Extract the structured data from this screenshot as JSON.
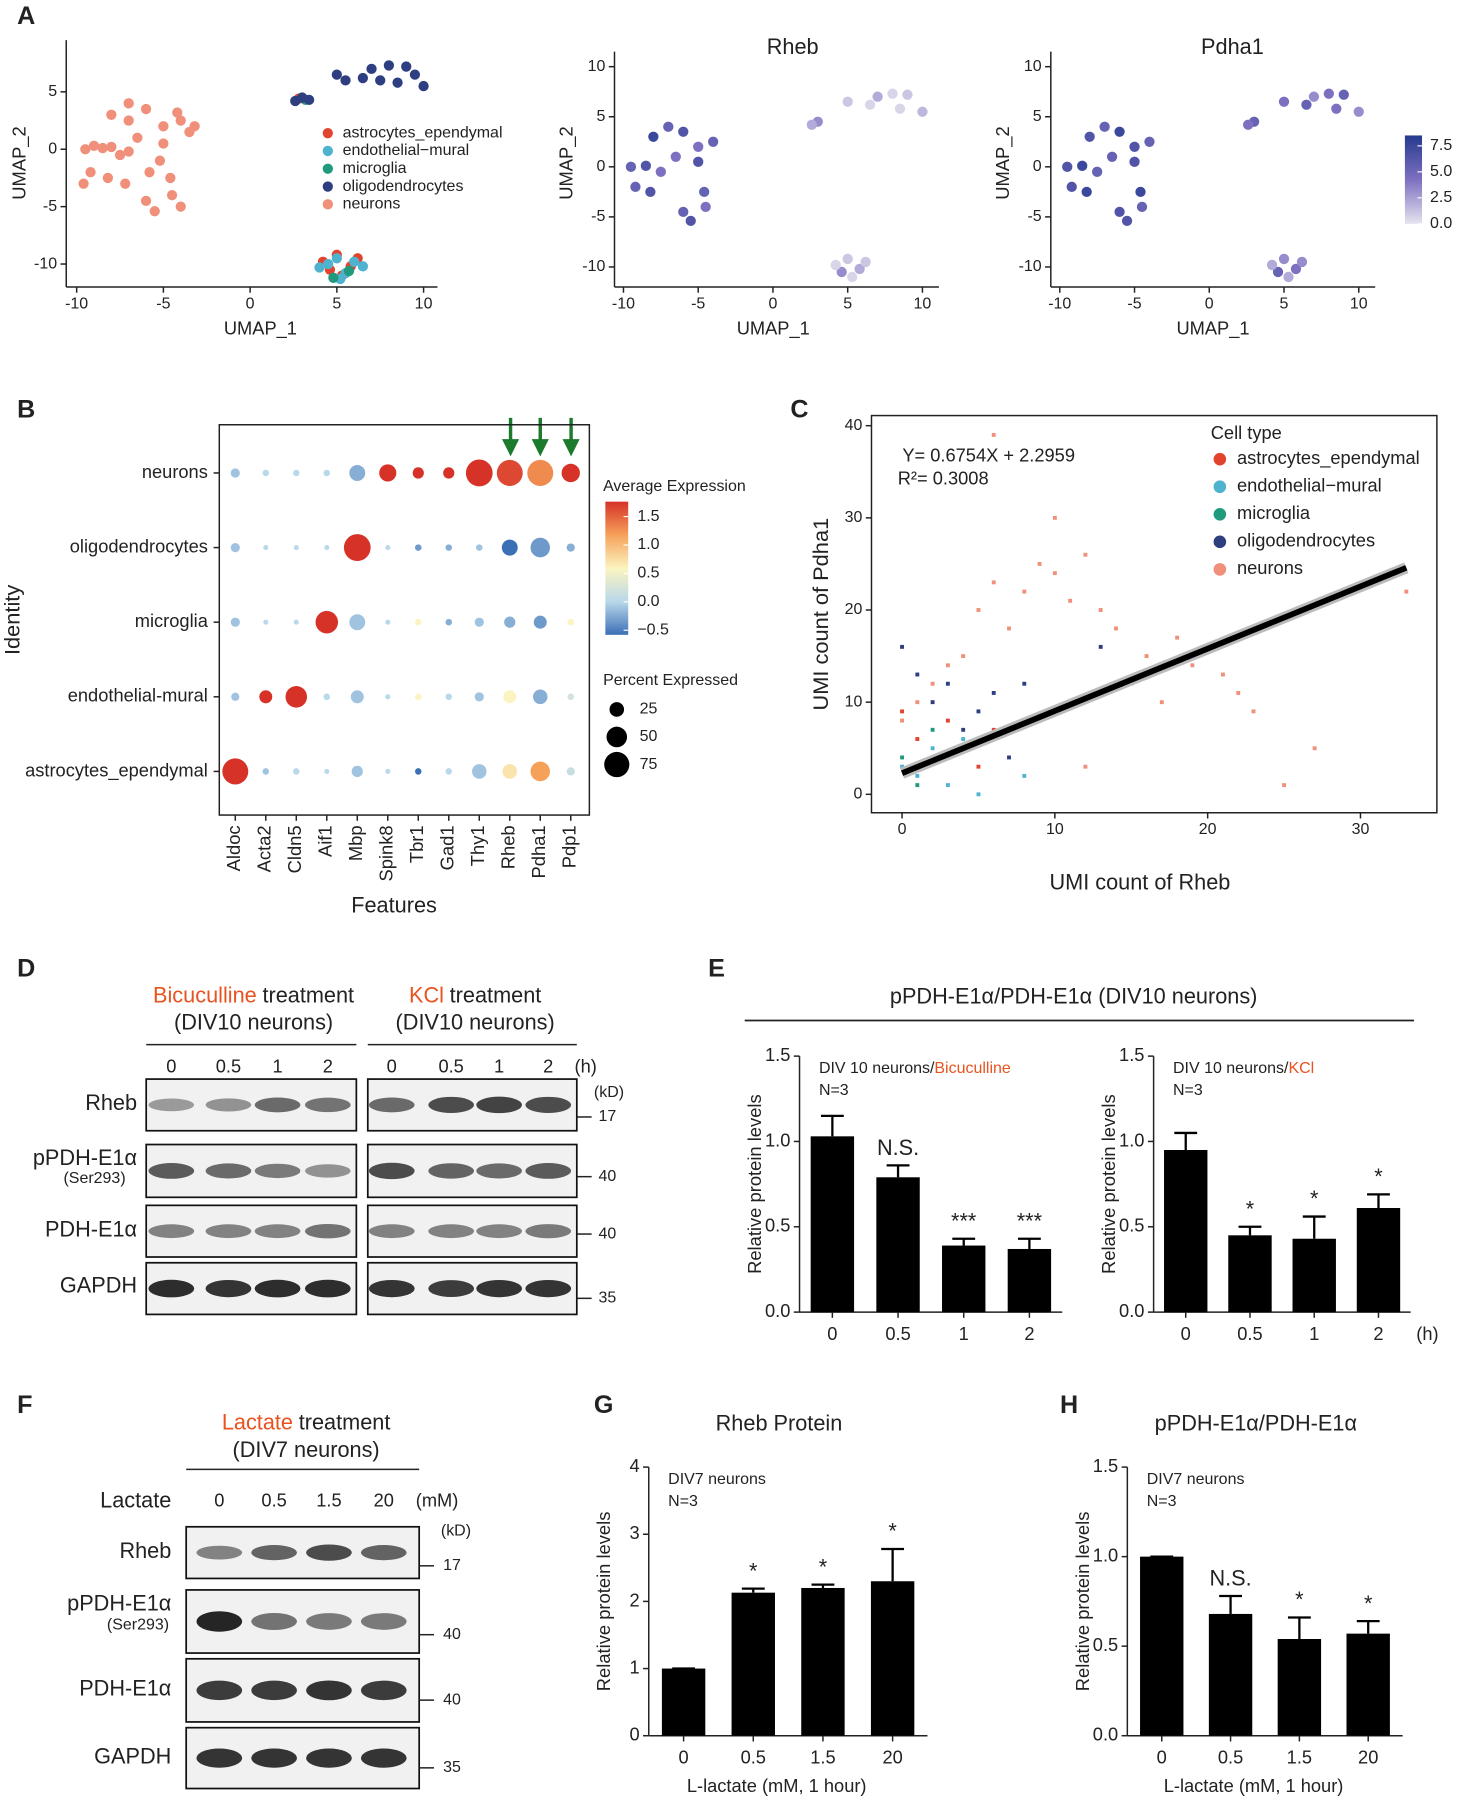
{
  "panel_labels": [
    "A",
    "B",
    "C",
    "D",
    "E",
    "F",
    "G",
    "H"
  ],
  "panel_e": {
    "title": "pPDH-E1α/PDH-E1α (DIV10 neurons)"
  },
  "chart_data": [
    {
      "type": "umap",
      "xlabel": "UMAP_1",
      "ylabel": "UMAP_2",
      "xlim": [
        -10.6,
        10.8
      ],
      "ylim": [
        -12,
        9.5
      ],
      "xticks": [
        -10,
        -5,
        0,
        5,
        10
      ],
      "yticks": [
        -10,
        -5,
        0,
        5
      ],
      "series": [
        {
          "name": "astrocytes_ependymal",
          "color": "#e2432f",
          "x": [
            5,
            5.8,
            5.3,
            4.6,
            6.2,
            4.2,
            2.8
          ],
          "y": [
            -9.2,
            -10.2,
            -11,
            -10.5,
            -9.5,
            -9.8,
            4.4
          ]
        },
        {
          "name": "endothelial−mural",
          "color": "#4fb3cf",
          "x": [
            4.5,
            5.5,
            6,
            5,
            4,
            6.5,
            5.2
          ],
          "y": [
            -10,
            -10.8,
            -9.8,
            -9.5,
            -10.3,
            -10.2,
            -11.3
          ]
        },
        {
          "name": "microglia",
          "color": "#1f9a7d",
          "x": [
            5.7,
            4.8,
            3.2
          ],
          "y": [
            -10.6,
            -11.2,
            4.3
          ]
        },
        {
          "name": "oligodendrocytes",
          "color": "#2d3f80",
          "x": [
            5,
            5.5,
            6.5,
            7,
            8,
            9,
            9.5,
            10,
            8.5,
            7.5,
            3,
            2.6,
            3.4
          ],
          "y": [
            6.5,
            6,
            6.2,
            7,
            7.3,
            7.2,
            6.5,
            5.5,
            5.8,
            6,
            4.5,
            4.2,
            4.3
          ]
        },
        {
          "name": "neurons",
          "color": "#f0907a",
          "x": [
            -9.5,
            -9,
            -8.5,
            -8,
            -7.5,
            -7,
            -9.2,
            -9.6,
            -8.2,
            -7.2,
            -8,
            -7,
            -6,
            -5,
            -4,
            -3.5,
            -5,
            -5.2,
            -4.6,
            -4.5,
            -4,
            -5.5,
            -6,
            -5.8,
            -6.5,
            -7,
            -3.2,
            -4.2
          ],
          "y": [
            0,
            0.3,
            0.1,
            0.2,
            -0.5,
            -0.2,
            -2,
            -3,
            -2.5,
            -3,
            3,
            4,
            3.5,
            2,
            2.5,
            1.5,
            0.5,
            -1,
            -2.5,
            -4,
            -5,
            -5.4,
            -4.5,
            -2,
            1,
            2.5,
            2,
            3.2
          ]
        }
      ]
    },
    {
      "type": "feature",
      "title": "Rheb",
      "xlabel": "UMAP_1",
      "ylabel": "UMAP_2",
      "xlim": [
        -10.6,
        11.1
      ],
      "ylim": [
        -12,
        11.5
      ],
      "xticks": [
        -10,
        -5,
        0,
        5,
        10
      ],
      "yticks": [
        -10,
        -5,
        0,
        5,
        10
      ],
      "x": [
        -9.5,
        -8.5,
        -7.5,
        -9.2,
        -8.2,
        -8,
        -7,
        -6,
        -5,
        -4,
        -5,
        -4.6,
        -4.5,
        -5.5,
        -6,
        -6.5,
        5,
        5.8,
        5.3,
        4.6,
        6.2,
        4.2,
        5,
        6.5,
        7,
        8,
        9,
        10,
        8.5,
        3,
        2.6
      ],
      "y": [
        0,
        0.1,
        -0.5,
        -2,
        -2.5,
        3,
        4,
        3.5,
        2,
        2.5,
        0.5,
        -2.5,
        -4,
        -5.4,
        -4.5,
        1,
        -9.2,
        -10.2,
        -11,
        -10.5,
        -9.5,
        -9.8,
        6.5,
        6.2,
        7,
        7.3,
        7.2,
        5.5,
        5.8,
        4.5,
        4.2
      ],
      "values": [
        5,
        6,
        4,
        5,
        6,
        7,
        5,
        6,
        4,
        5,
        6,
        5,
        4,
        6,
        5,
        4,
        1,
        2,
        0.5,
        3,
        1,
        0.5,
        1,
        0.5,
        2,
        0.5,
        1,
        1.5,
        0.5,
        3,
        2
      ]
    },
    {
      "type": "feature",
      "title": "Pdha1",
      "xlabel": "UMAP_1",
      "ylabel": "UMAP_2",
      "xlim": [
        -10.6,
        11.1
      ],
      "ylim": [
        -12,
        11.5
      ],
      "xticks": [
        -10,
        -5,
        0,
        5,
        10
      ],
      "yticks": [
        -10,
        -5,
        0,
        5,
        10
      ],
      "x": [
        -9.5,
        -8.5,
        -7.5,
        -9.2,
        -8.2,
        -8,
        -7,
        -6,
        -5,
        -4,
        -5,
        -4.6,
        -4.5,
        -5.5,
        -6,
        -6.5,
        5,
        5.8,
        5.3,
        4.6,
        6.2,
        4.2,
        5,
        6.5,
        7,
        8,
        9,
        10,
        8.5,
        3,
        2.6
      ],
      "y": [
        0,
        0.1,
        -0.5,
        -2,
        -2.5,
        3,
        4,
        3.5,
        2,
        2.5,
        0.5,
        -2.5,
        -4,
        -5.4,
        -4.5,
        1,
        -9.2,
        -10.2,
        -11,
        -10.5,
        -9.5,
        -9.8,
        6.5,
        6.2,
        7,
        7.3,
        7.2,
        5.5,
        5.8,
        4.5,
        4.2
      ],
      "values": [
        6,
        7,
        5,
        6,
        7,
        6,
        5,
        7,
        6,
        5,
        6,
        7,
        5,
        6,
        6,
        5,
        3,
        4,
        2,
        5,
        3,
        2,
        4,
        5,
        3,
        4,
        5,
        3,
        4,
        5,
        4
      ],
      "colorbar": {
        "lim": [
          0,
          8.5
        ],
        "ticks": [
          {
            "value": 0,
            "label": "0.0"
          },
          2.5,
          {
            "value": 5,
            "label": "5.0"
          },
          7.5
        ]
      }
    },
    {
      "type": "dotplot",
      "xlabel": "Features",
      "ylabel": "Identity",
      "categories": [
        "Aldoc",
        "Acta2",
        "Cldn5",
        "Aif1",
        "Mbp",
        "Spink8",
        "Tbr1",
        "Gad1",
        "Thy1",
        "Rheb",
        "Pdha1",
        "Pdp1"
      ],
      "category_colors": [
        "#222222",
        "#222222",
        "#222222",
        "#222222",
        "#222222",
        "#222222",
        "#222222",
        "#222222",
        "#222222",
        "#1b7a2c",
        "#1b7a2c",
        "#1b7a2c"
      ],
      "identities": [
        "neurons",
        "oligodendrocytes",
        "microglia",
        "endothelial-mural",
        "astrocytes_ependymal"
      ],
      "expression": [
        [
          -0.1,
          0,
          0,
          0,
          -0.2,
          1.5,
          1.5,
          1.5,
          1.6,
          1.4,
          1.1,
          1.5
        ],
        [
          -0.1,
          0,
          0,
          0,
          1.6,
          0,
          -0.3,
          -0.2,
          -0.1,
          -0.6,
          -0.3,
          -0.2
        ],
        [
          -0.1,
          0,
          0,
          1.6,
          -0.1,
          0,
          0.5,
          -0.2,
          -0.1,
          -0.2,
          -0.3,
          0.5
        ],
        [
          -0.1,
          1.6,
          1.6,
          0,
          -0.1,
          0,
          0.5,
          0,
          -0.1,
          0.5,
          -0.2,
          0.2
        ],
        [
          1.6,
          -0.1,
          0,
          0,
          -0.1,
          0,
          -0.5,
          0,
          -0.1,
          0.6,
          1.0,
          0.1
        ]
      ],
      "percent": [
        [
          10,
          5,
          5,
          5,
          30,
          35,
          15,
          15,
          85,
          80,
          80,
          40
        ],
        [
          10,
          3,
          3,
          3,
          85,
          3,
          5,
          5,
          5,
          30,
          45,
          8
        ],
        [
          10,
          3,
          3,
          60,
          30,
          3,
          5,
          5,
          10,
          15,
          20,
          5
        ],
        [
          8,
          20,
          55,
          5,
          20,
          3,
          5,
          5,
          10,
          20,
          25,
          5
        ],
        [
          80,
          5,
          5,
          3,
          15,
          3,
          5,
          5,
          25,
          25,
          45,
          8
        ]
      ],
      "color_title": "Average Expression",
      "clim": [
        -0.5,
        1.5
      ],
      "cticks": [
        {
          "value": -0.5,
          "label": "−0.5"
        },
        {
          "value": 0,
          "label": "0.0"
        },
        0.5,
        {
          "value": 1,
          "label": "1.0"
        },
        1.5
      ],
      "size_title": "Percent Expressed",
      "size_ticks": [
        25,
        50,
        75
      ]
    },
    {
      "type": "scatter",
      "xlabel": "UMI count of Rheb",
      "ylabel": "UMI count of Pdha1",
      "legend_title": "Cell type",
      "equation": "Y= 0.6754X + 2.2959",
      "r_squared": "R²= 0.3008",
      "fit": {
        "slope": 0.6754,
        "intercept": 2.2959,
        "x_range": [
          0,
          33
        ]
      },
      "xlim": [
        -2,
        35
      ],
      "ylim": [
        -2,
        41.1
      ],
      "xticks": [
        0,
        10,
        20,
        30
      ],
      "yticks": [
        0,
        10,
        20,
        30,
        40
      ],
      "series": [
        {
          "name": "astrocytes_ependymal",
          "color": "#e2432f",
          "x": [
            0,
            1,
            2,
            3,
            4,
            5,
            6
          ],
          "y": [
            9,
            6,
            4,
            8,
            5,
            3,
            7
          ]
        },
        {
          "name": "endothelial−mural",
          "color": "#4fb3cf",
          "x": [
            0,
            1,
            2,
            3,
            4,
            5,
            8
          ],
          "y": [
            3,
            2,
            5,
            1,
            6,
            0,
            2
          ]
        },
        {
          "name": "microglia",
          "color": "#1f9a7d",
          "x": [
            0,
            1,
            2
          ],
          "y": [
            4,
            1,
            7
          ]
        },
        {
          "name": "oligodendrocytes",
          "color": "#2d3f80",
          "x": [
            0,
            1,
            2,
            3,
            4,
            5,
            6,
            7,
            8,
            9,
            13
          ],
          "y": [
            16,
            13,
            10,
            12,
            7,
            9,
            11,
            4,
            12,
            8,
            16
          ]
        },
        {
          "name": "neurons",
          "color": "#f0907a",
          "x": [
            0,
            1,
            2,
            3,
            4,
            5,
            6,
            6,
            7,
            8,
            9,
            10,
            10,
            11,
            12,
            13,
            14,
            15,
            16,
            17,
            18,
            19,
            20,
            21,
            22,
            23,
            25,
            27,
            33,
            12
          ],
          "y": [
            8,
            10,
            12,
            14,
            15,
            20,
            23,
            39,
            18,
            22,
            25,
            24,
            30,
            21,
            26,
            20,
            18,
            12,
            15,
            10,
            17,
            14,
            16,
            13,
            11,
            9,
            1,
            5,
            22,
            3
          ]
        }
      ]
    },
    {
      "type": "bar",
      "ylabel": "Relative protein levels",
      "note": "DIV 10 neurons/",
      "note_highlight": "Bicuculline",
      "n_label": "N=3",
      "categories": [
        "0",
        "0.5",
        "1",
        "2"
      ],
      "values": [
        1.03,
        0.79,
        0.39,
        0.37
      ],
      "errors": [
        0.12,
        0.07,
        0.04,
        0.06
      ],
      "annotations": [
        null,
        "N.S.",
        "***",
        "***"
      ],
      "color": "#000000",
      "highlight_color": "#e8531f",
      "ylim": [
        0,
        1.5
      ],
      "yticks": [
        {
          "value": 0,
          "label": "0.0"
        },
        0.5,
        {
          "value": 1,
          "label": "1.0"
        },
        1.5
      ]
    },
    {
      "type": "bar",
      "ylabel": "Relative protein levels",
      "note": "DIV 10 neurons/",
      "note_highlight": "KCl",
      "n_label": "N=3",
      "x_unit": "(h)",
      "categories": [
        "0",
        "0.5",
        "1",
        "2"
      ],
      "values": [
        0.95,
        0.45,
        0.43,
        0.61
      ],
      "errors": [
        0.1,
        0.05,
        0.13,
        0.08
      ],
      "annotations": [
        null,
        "*",
        "*",
        "*"
      ],
      "color": "#000000",
      "highlight_color": "#e8531f",
      "ylim": [
        0,
        1.5
      ],
      "yticks": [
        {
          "value": 0,
          "label": "0.0"
        },
        0.5,
        {
          "value": 1,
          "label": "1.0"
        },
        1.5
      ]
    },
    {
      "type": "bar",
      "title": "Rheb Protein",
      "ylabel": "Relative protein levels",
      "xlabel": "L-lactate (mM, 1 hour)",
      "note": "DIV7 neurons",
      "n_label": "N=3",
      "categories": [
        "0",
        "0.5",
        "1.5",
        "20"
      ],
      "values": [
        1,
        2.13,
        2.2,
        2.3
      ],
      "errors": [
        0,
        0.06,
        0.05,
        0.48
      ],
      "annotations": [
        null,
        "*",
        "*",
        "*"
      ],
      "color": "#000000",
      "ylim": [
        0,
        4
      ],
      "yticks": [
        0,
        1,
        2,
        3,
        4
      ]
    },
    {
      "type": "bar",
      "title": "pPDH-E1α/PDH-E1α",
      "ylabel": "Relative protein levels",
      "xlabel": "L-lactate (mM, 1 hour)",
      "note": "DIV7 neurons",
      "n_label": "N=3",
      "categories": [
        "0",
        "0.5",
        "1.5",
        "20"
      ],
      "values": [
        1,
        0.68,
        0.54,
        0.57
      ],
      "errors": [
        0,
        0.1,
        0.12,
        0.07
      ],
      "annotations": [
        null,
        "N.S.",
        "*",
        "*"
      ],
      "color": "#000000",
      "ylim": [
        0,
        1.5
      ],
      "yticks": [
        {
          "value": 0,
          "label": "0.0"
        },
        0.5,
        {
          "value": 1,
          "label": "1.0"
        },
        1.5
      ]
    }
  ],
  "blots": {
    "panel_d": {
      "groups": [
        {
          "highlight": "Bicuculline",
          "rest": "treatment",
          "sub": "(DIV10 neurons)"
        },
        {
          "highlight": "KCl",
          "rest": "treatment",
          "sub": "(DIV10 neurons)"
        }
      ],
      "lanes": [
        "0",
        "0.5",
        "1",
        "2"
      ],
      "unit": "(h)",
      "kd": "(kD)",
      "rows": [
        {
          "label": "Rheb",
          "mw": "17"
        },
        {
          "label": "pPDH-E1α",
          "sublabel": "(Ser293)",
          "mw": "40"
        },
        {
          "label": "PDH-E1α",
          "mw": "40"
        },
        {
          "label": "GAPDH",
          "mw": "35"
        }
      ]
    },
    "panel_f": {
      "group": {
        "highlight": "Lactate",
        "rest": "treatment",
        "sub": "(DIV7 neurons)"
      },
      "row_label": "Lactate",
      "lanes": [
        "0",
        "0.5",
        "1.5",
        "20"
      ],
      "unit": "(mM)",
      "kd": "(kD)",
      "rows": [
        {
          "label": "Rheb",
          "mw": "17"
        },
        {
          "label": "pPDH-E1α",
          "sublabel": "(Ser293)",
          "mw": "40"
        },
        {
          "label": "PDH-E1α",
          "mw": "40"
        },
        {
          "label": "GAPDH",
          "mw": "35"
        }
      ]
    }
  }
}
